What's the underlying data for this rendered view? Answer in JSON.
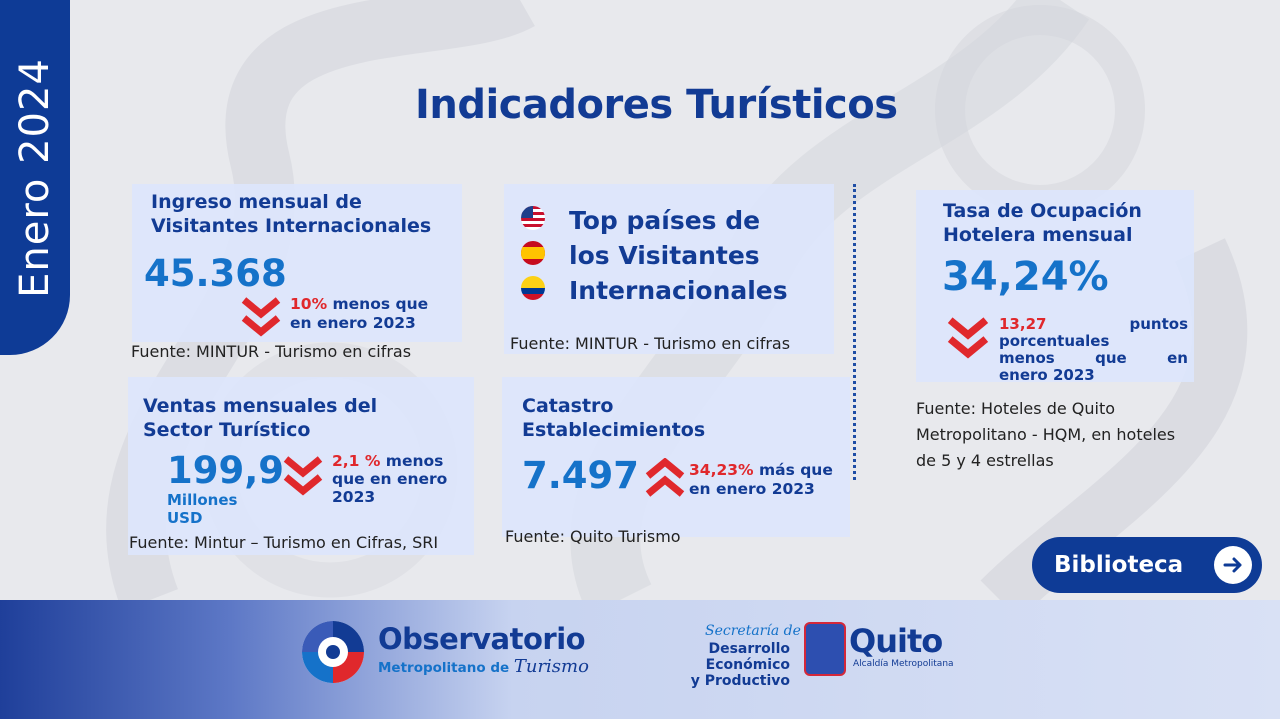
{
  "side_label": "Enero 2024",
  "title": "Indicadores Turísticos",
  "card_visitantes": {
    "heading_1": "Ingreso mensual de",
    "heading_2": "Visitantes Internacionales",
    "value": "45.368",
    "change_pct": "10%",
    "change_text_1": " menos que",
    "change_text_2": "en enero 2023",
    "source": "Fuente: MINTUR - Turismo en cifras"
  },
  "card_paises": {
    "heading_1": "Top países de",
    "heading_2": "los Visitantes",
    "heading_3": "Internacionales",
    "flags": [
      "usa-flag-icon",
      "spain-flag-icon",
      "colombia-flag-icon"
    ],
    "source": "Fuente: MINTUR - Turismo en cifras"
  },
  "card_ocupacion": {
    "heading_1": "Tasa de Ocupación",
    "heading_2": "Hotelera mensual",
    "value": "34,24%",
    "change_pct": "13,27",
    "change_w1": "puntos",
    "change_line2": "porcentuales",
    "change_l3a": "menos",
    "change_l3b": "que",
    "change_l3c": "en",
    "change_line4": "enero 2023",
    "source_1": "Fuente: Hoteles de Quito",
    "source_2": "Metropolitano - HQM, en hoteles",
    "source_3": "de 5 y 4 estrellas"
  },
  "card_ventas": {
    "heading_1": "Ventas mensuales del",
    "heading_2": "Sector Turístico",
    "value": "199,9",
    "unit_1": "Millones",
    "unit_2": "USD",
    "change_pct": "2,1 %",
    "change_text_1": " menos",
    "change_text_2": "que en enero",
    "change_text_3": "2023",
    "source": "Fuente: Mintur – Turismo en Cifras, SRI"
  },
  "card_catastro": {
    "heading_1": "Catastro",
    "heading_2": "Establecimientos",
    "value": "7.497",
    "change_pct": "34,23%",
    "change_text_1": " más que",
    "change_text_2": "en enero 2023",
    "source": "Fuente: Quito Turismo"
  },
  "button": {
    "label": "Biblioteca"
  },
  "footer": {
    "obs_title": "Observatorio",
    "obs_sub": "Metropolitano de",
    "obs_script": "Turismo",
    "sec_script": "Secretaría de",
    "sec_line1": "Desarrollo Económico",
    "sec_line2": "y Productivo",
    "quito": "Quito",
    "quito_sub": "Alcaldía Metropolitana"
  },
  "colors": {
    "navy": "#123b94",
    "blue": "#1572c9",
    "red": "#e0282c"
  }
}
